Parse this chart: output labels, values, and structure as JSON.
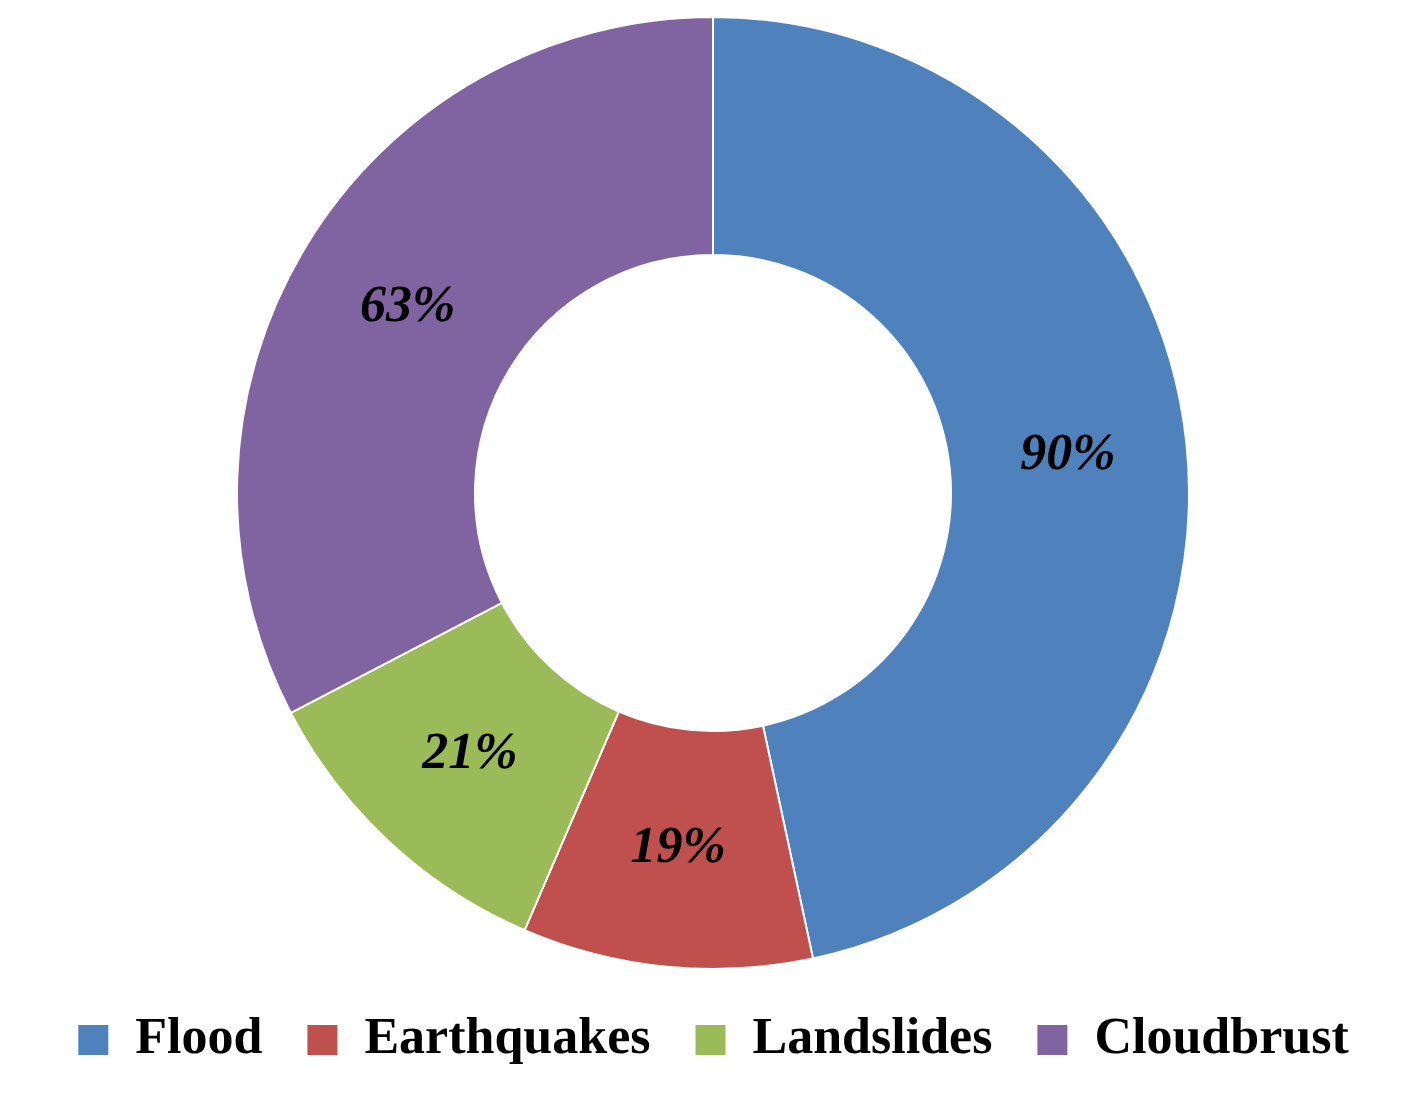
{
  "chart_data": {
    "type": "donut",
    "categories": [
      "Flood",
      "Earthquakes",
      "Landslides",
      "Cloudbrust"
    ],
    "values": [
      90,
      19,
      21,
      63
    ],
    "colors": [
      "#4f81bd",
      "#c0504d",
      "#9bbb59",
      "#8064a2"
    ],
    "value_labels": [
      "90%",
      "19%",
      "21%",
      "63%"
    ],
    "legend": "bottom"
  }
}
